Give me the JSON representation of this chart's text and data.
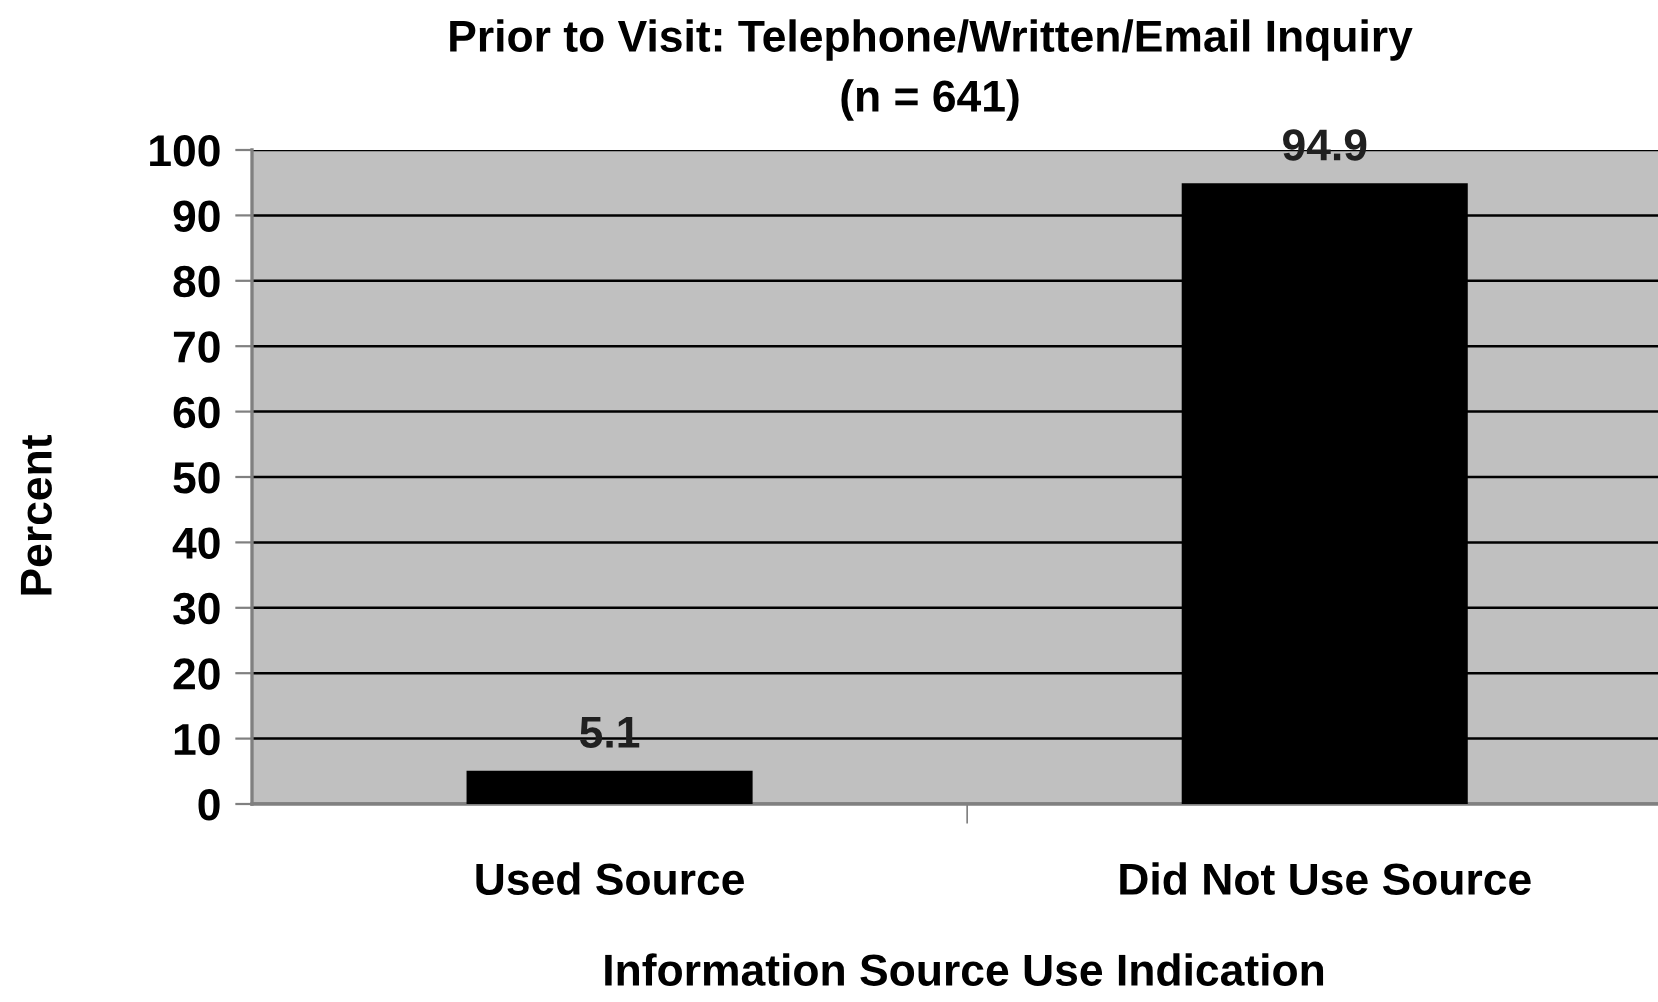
{
  "chart_data": {
    "type": "bar",
    "title": "Prior to Visit: Telephone/Written/Email Inquiry",
    "subtitle": "(n = 641)",
    "xlabel": "Information Source Use Indication",
    "ylabel": "Percent",
    "categories": [
      "Used Source",
      "Did Not Use Source"
    ],
    "values": [
      5.1,
      94.9
    ],
    "color": "#000000",
    "ylim": [
      0,
      100
    ],
    "yticks": [
      0,
      10,
      20,
      30,
      40,
      50,
      60,
      70,
      80,
      90,
      100
    ],
    "grid": "y",
    "data_labels": true
  }
}
